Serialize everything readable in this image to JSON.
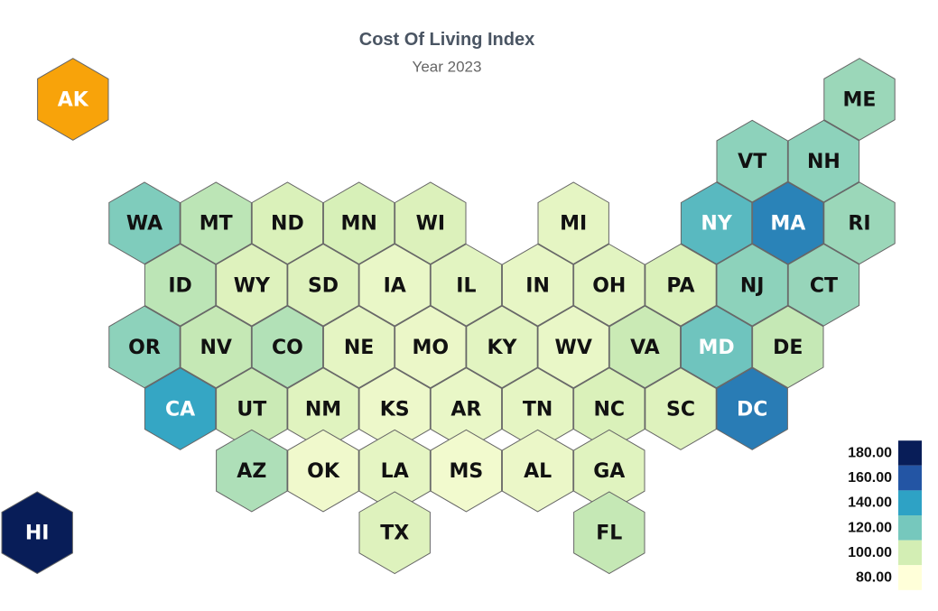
{
  "chart_data": {
    "type": "hexmap",
    "title": "Cost Of Living Index",
    "subtitle": "Year 2023",
    "colorscale": [
      [
        80,
        "#ffffd9"
      ],
      [
        100,
        "#d3eeb4"
      ],
      [
        120,
        "#76c8bd"
      ],
      [
        140,
        "#2ea2c5"
      ],
      [
        160,
        "#2355a4"
      ],
      [
        180,
        "#081d58"
      ]
    ],
    "legend_ticks": [
      {
        "value": 180,
        "label": "180.00"
      },
      {
        "value": 160,
        "label": "160.00"
      },
      {
        "value": 140,
        "label": "140.00"
      },
      {
        "value": 120,
        "label": "120.00"
      },
      {
        "value": 100,
        "label": "100.00"
      },
      {
        "value": 80,
        "label": "80.00"
      }
    ],
    "regions": [
      {
        "code": "AK",
        "value": null,
        "color": "#f8a30a"
      },
      {
        "code": "ME",
        "value": 112
      },
      {
        "code": "VT",
        "value": 115
      },
      {
        "code": "NH",
        "value": 115
      },
      {
        "code": "WA",
        "value": 118
      },
      {
        "code": "MT",
        "value": 105
      },
      {
        "code": "ND",
        "value": 97
      },
      {
        "code": "MN",
        "value": 98
      },
      {
        "code": "WI",
        "value": 96
      },
      {
        "code": "MI",
        "value": 92
      },
      {
        "code": "NY",
        "value": 128
      },
      {
        "code": "MA",
        "value": 148
      },
      {
        "code": "RI",
        "value": 112
      },
      {
        "code": "ID",
        "value": 105
      },
      {
        "code": "WY",
        "value": 95
      },
      {
        "code": "SD",
        "value": 95
      },
      {
        "code": "IA",
        "value": 90
      },
      {
        "code": "IL",
        "value": 93
      },
      {
        "code": "IN",
        "value": 91
      },
      {
        "code": "OH",
        "value": 93
      },
      {
        "code": "PA",
        "value": 97
      },
      {
        "code": "NJ",
        "value": 115
      },
      {
        "code": "CT",
        "value": 113
      },
      {
        "code": "OR",
        "value": 115
      },
      {
        "code": "NV",
        "value": 103
      },
      {
        "code": "CO",
        "value": 107
      },
      {
        "code": "NE",
        "value": 92
      },
      {
        "code": "MO",
        "value": 89
      },
      {
        "code": "KY",
        "value": 93
      },
      {
        "code": "WV",
        "value": 90
      },
      {
        "code": "VA",
        "value": 102
      },
      {
        "code": "MD",
        "value": 122
      },
      {
        "code": "DE",
        "value": 103
      },
      {
        "code": "CA",
        "value": 138
      },
      {
        "code": "UT",
        "value": 102
      },
      {
        "code": "NM",
        "value": 94
      },
      {
        "code": "KS",
        "value": 88
      },
      {
        "code": "AR",
        "value": 90
      },
      {
        "code": "TN",
        "value": 92
      },
      {
        "code": "NC",
        "value": 97
      },
      {
        "code": "SC",
        "value": 95
      },
      {
        "code": "DC",
        "value": 150
      },
      {
        "code": "AZ",
        "value": 108
      },
      {
        "code": "OK",
        "value": 87
      },
      {
        "code": "LA",
        "value": 92
      },
      {
        "code": "MS",
        "value": 86
      },
      {
        "code": "AL",
        "value": 89
      },
      {
        "code": "GA",
        "value": 94
      },
      {
        "code": "HI",
        "value": 182
      },
      {
        "code": "TX",
        "value": 95
      },
      {
        "code": "FL",
        "value": 103
      }
    ]
  }
}
